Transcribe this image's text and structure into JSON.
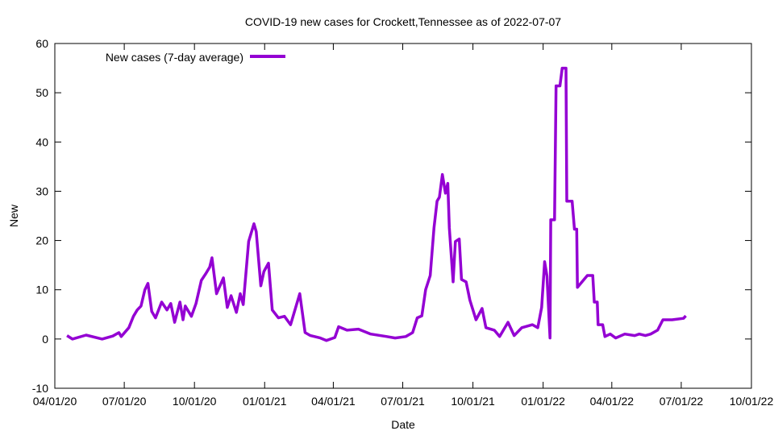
{
  "chart_data": {
    "type": "line",
    "title": "COVID-19 new cases for Crockett,Tennessee as of 2022-07-07",
    "xlabel": "Date",
    "ylabel": "New",
    "x_units": "days since 2020-04-01",
    "xlim": [
      0,
      913
    ],
    "ylim": [
      -10,
      60
    ],
    "yticks": [
      -10,
      0,
      10,
      20,
      30,
      40,
      50,
      60
    ],
    "xticks": [
      {
        "day": 0,
        "label": "04/01/20"
      },
      {
        "day": 91,
        "label": "07/01/20"
      },
      {
        "day": 183,
        "label": "10/01/20"
      },
      {
        "day": 275,
        "label": "01/01/21"
      },
      {
        "day": 365,
        "label": "04/01/21"
      },
      {
        "day": 456,
        "label": "07/01/21"
      },
      {
        "day": 548,
        "label": "10/01/21"
      },
      {
        "day": 640,
        "label": "01/01/22"
      },
      {
        "day": 730,
        "label": "04/01/22"
      },
      {
        "day": 821,
        "label": "07/01/22"
      },
      {
        "day": 913,
        "label": "10/01/22"
      }
    ],
    "grid": false,
    "legend_position": "top-left",
    "series": [
      {
        "name": "New cases (7-day average)",
        "color": "#9400d3",
        "points": [
          [
            16,
            0.7
          ],
          [
            23,
            0
          ],
          [
            41,
            0.8
          ],
          [
            62,
            0
          ],
          [
            76,
            0.6
          ],
          [
            84,
            1.3
          ],
          [
            87,
            0.5
          ],
          [
            97,
            2.3
          ],
          [
            103,
            4.6
          ],
          [
            108,
            5.9
          ],
          [
            113,
            6.7
          ],
          [
            118,
            10
          ],
          [
            122,
            11.3
          ],
          [
            127,
            5.6
          ],
          [
            132,
            4.3
          ],
          [
            140,
            7.5
          ],
          [
            147,
            5.9
          ],
          [
            152,
            7.2
          ],
          [
            157,
            3.4
          ],
          [
            164,
            7.5
          ],
          [
            168,
            3.9
          ],
          [
            171,
            6.7
          ],
          [
            179,
            4.6
          ],
          [
            185,
            7.2
          ],
          [
            192,
            11.9
          ],
          [
            198,
            13.3
          ],
          [
            203,
            14.6
          ],
          [
            206,
            16.5
          ],
          [
            212,
            9.2
          ],
          [
            221,
            12.4
          ],
          [
            226,
            6.4
          ],
          [
            231,
            8.8
          ],
          [
            238,
            5.4
          ],
          [
            243,
            9.2
          ],
          [
            247,
            7.0
          ],
          [
            254,
            19.8
          ],
          [
            261,
            23.4
          ],
          [
            264,
            21.8
          ],
          [
            270,
            10.8
          ],
          [
            274,
            13.7
          ],
          [
            280,
            15.4
          ],
          [
            285,
            5.9
          ],
          [
            293,
            4.3
          ],
          [
            301,
            4.6
          ],
          [
            309,
            2.9
          ],
          [
            321,
            9.2
          ],
          [
            328,
            1.3
          ],
          [
            335,
            0.7
          ],
          [
            348,
            0.2
          ],
          [
            356,
            -0.3
          ],
          [
            367,
            0.3
          ],
          [
            372,
            2.5
          ],
          [
            383,
            1.8
          ],
          [
            398,
            2
          ],
          [
            414,
            1
          ],
          [
            435,
            0.5
          ],
          [
            446,
            0.2
          ],
          [
            460,
            0.5
          ],
          [
            469,
            1.3
          ],
          [
            475,
            4.3
          ],
          [
            481,
            4.7
          ],
          [
            486,
            10
          ],
          [
            492,
            12.9
          ],
          [
            497,
            22.6
          ],
          [
            501,
            28
          ],
          [
            504,
            28.8
          ],
          [
            508,
            33.4
          ],
          [
            512,
            29.6
          ],
          [
            515,
            31.6
          ],
          [
            517,
            22.6
          ],
          [
            522,
            11.6
          ],
          [
            525,
            19.8
          ],
          [
            530,
            20.3
          ],
          [
            533,
            12.1
          ],
          [
            539,
            11.6
          ],
          [
            544,
            7.9
          ],
          [
            552,
            3.9
          ],
          [
            560,
            6.2
          ],
          [
            565,
            2.3
          ],
          [
            576,
            1.8
          ],
          [
            583,
            0.5
          ],
          [
            594,
            3.4
          ],
          [
            602,
            0.7
          ],
          [
            612,
            2.3
          ],
          [
            626,
            2.9
          ],
          [
            633,
            2.3
          ],
          [
            638,
            6.4
          ],
          [
            642,
            15.7
          ],
          [
            645,
            12.8
          ],
          [
            649,
            0.2
          ],
          [
            650,
            24.2
          ],
          [
            655,
            24.2
          ],
          [
            657,
            51.4
          ],
          [
            662,
            51.4
          ],
          [
            665,
            55
          ],
          [
            670,
            55
          ],
          [
            671,
            28
          ],
          [
            678,
            28
          ],
          [
            681,
            22.3
          ],
          [
            684,
            22.3
          ],
          [
            685,
            10.5
          ],
          [
            691,
            11.6
          ],
          [
            698,
            12.9
          ],
          [
            705,
            12.9
          ],
          [
            707,
            7.5
          ],
          [
            711,
            7.5
          ],
          [
            712,
            2.9
          ],
          [
            718,
            2.9
          ],
          [
            721,
            0.5
          ],
          [
            728,
            1
          ],
          [
            735,
            0.2
          ],
          [
            747,
            1
          ],
          [
            760,
            0.7
          ],
          [
            766,
            1
          ],
          [
            774,
            0.7
          ],
          [
            781,
            1
          ],
          [
            790,
            1.8
          ],
          [
            797,
            3.9
          ],
          [
            809,
            3.9
          ],
          [
            824,
            4.2
          ],
          [
            827,
            4.7
          ]
        ]
      }
    ]
  }
}
